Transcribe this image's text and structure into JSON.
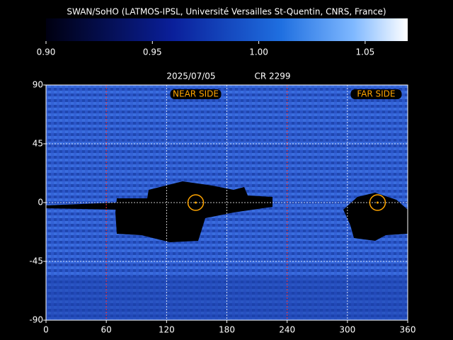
{
  "chart_data": {
    "type": "map",
    "title": "SWAN/SoHO (LATMOS-IPSL, Université Versailles St-Quentin, CNRS, France)",
    "colorbar": {
      "lim": [
        0.9,
        1.07
      ],
      "ticks": [
        {
          "value": 0.9,
          "label": "0.90"
        },
        0.95,
        {
          "value": 1.0,
          "label": "1.00"
        },
        1.05
      ]
    },
    "date": "2025/07/05",
    "rotation": "CR 2299",
    "xlim": [
      0,
      360
    ],
    "xticks": [
      0,
      60,
      120,
      180,
      240,
      300,
      360
    ],
    "ylim": [
      -90,
      90
    ],
    "yticks": [
      -90,
      -45,
      0,
      45,
      90
    ],
    "grid": true,
    "red_lines": [
      60,
      240
    ],
    "markers": [
      {
        "label": "NEAR SIDE",
        "x": 149,
        "y": 0
      },
      {
        "label": "FAR SIDE",
        "x": 330,
        "y": 0
      }
    ]
  }
}
